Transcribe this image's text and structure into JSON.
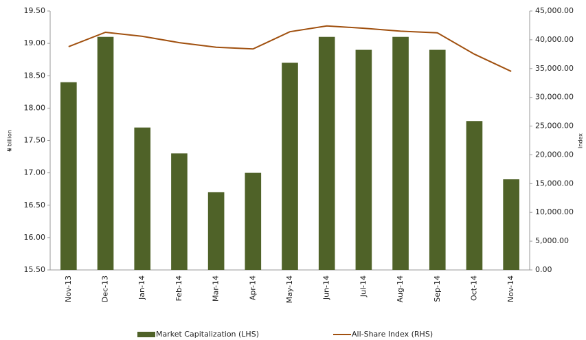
{
  "chart_data": {
    "type": "bar",
    "categories": [
      "Nov-13",
      "Dec-13",
      "Jan-14",
      "Feb-14",
      "Mar-14",
      "Apr-14",
      "May-14",
      "Jun-14",
      "Jul-14",
      "Aug-14",
      "Sep-14",
      "Oct-14",
      "Nov-14"
    ],
    "y_label": "₦ billion",
    "y2_label": "Index",
    "ylim": [
      15.5,
      19.5
    ],
    "yticks": [
      {
        "value": 15.5,
        "label": "15.50"
      },
      {
        "value": 16,
        "label": "16.00"
      },
      {
        "value": 16.5,
        "label": "16.50"
      },
      {
        "value": 17,
        "label": "17.00"
      },
      {
        "value": 17.5,
        "label": "17.50"
      },
      {
        "value": 18,
        "label": "18.00"
      },
      {
        "value": 18.5,
        "label": "18.50"
      },
      {
        "value": 19,
        "label": "19.00"
      },
      {
        "value": 19.5,
        "label": "19.50"
      }
    ],
    "y2lim": [
      0,
      45000
    ],
    "y2ticks": [
      {
        "value": 0,
        "label": "0.00"
      },
      {
        "value": 5000,
        "label": "5,000.00"
      },
      {
        "value": 10000,
        "label": "10,000.00"
      },
      {
        "value": 15000,
        "label": "15,000.00"
      },
      {
        "value": 20000,
        "label": "20,000.00"
      },
      {
        "value": 25000,
        "label": "25,000.00"
      },
      {
        "value": 30000,
        "label": "30,000.00"
      },
      {
        "value": 35000,
        "label": "35,000.00"
      },
      {
        "value": 40000,
        "label": "40,000.00"
      },
      {
        "value": 45000,
        "label": "45,000.00"
      }
    ],
    "series": [
      {
        "name": "Market Capitalization (LHS)",
        "type": "bar",
        "color": "#4f6228",
        "values": [
          18.4,
          19.1,
          17.7,
          17.3,
          16.7,
          17.0,
          18.7,
          19.1,
          18.9,
          19.1,
          18.9,
          17.8,
          16.9
        ]
      },
      {
        "name": "All-Share Index (RHS)",
        "type": "line",
        "axis": "y2",
        "color": "#a0500f",
        "values": [
          38800,
          41300,
          40600,
          39500,
          38700,
          38400,
          41400,
          42400,
          42000,
          41500,
          41200,
          37500,
          34500
        ]
      }
    ],
    "legend": "bottom"
  }
}
